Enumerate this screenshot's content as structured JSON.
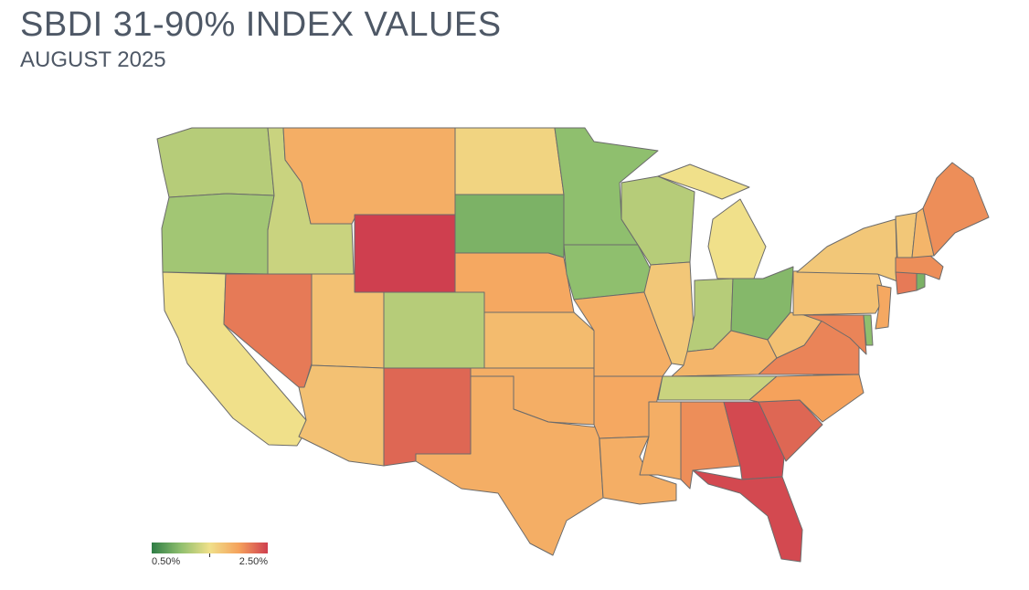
{
  "header": {
    "title": "SBDI 31-90% INDEX VALUES",
    "subtitle": "AUGUST 2025"
  },
  "legend": {
    "min_label": "0.50%",
    "max_label": "2.50%",
    "min_value": 0.5,
    "max_value": 2.5,
    "colors": [
      "#2e7d45",
      "#8fbf6e",
      "#f0e08a",
      "#f5a25c",
      "#cf3f4f"
    ]
  },
  "colors": {
    "border": "#6b6b6b",
    "title_text": "#4e5866"
  },
  "states": {
    "WA": {
      "value": 1.2
    },
    "OR": {
      "value": 1.1
    },
    "CA": {
      "value": 1.5
    },
    "ID": {
      "value": 1.3
    },
    "NV": {
      "value": 2.2
    },
    "MT": {
      "value": 1.9
    },
    "WY": {
      "value": 2.5
    },
    "UT": {
      "value": 1.75
    },
    "AZ": {
      "value": 1.75
    },
    "CO": {
      "value": 1.2
    },
    "NM": {
      "value": 2.3
    },
    "ND": {
      "value": 1.6
    },
    "SD": {
      "value": 0.9
    },
    "NE": {
      "value": 1.95
    },
    "KS": {
      "value": 1.8
    },
    "OK": {
      "value": 1.9
    },
    "TX": {
      "value": 1.9
    },
    "MN": {
      "value": 1.0
    },
    "IA": {
      "value": 1.0
    },
    "MO": {
      "value": 1.9
    },
    "AR": {
      "value": 1.95
    },
    "LA": {
      "value": 1.9
    },
    "WI": {
      "value": 1.2
    },
    "IL": {
      "value": 1.7
    },
    "MI": {
      "value": 1.5
    },
    "IN": {
      "value": 1.2
    },
    "OH": {
      "value": 0.95
    },
    "KY": {
      "value": 1.85
    },
    "TN": {
      "value": 1.3
    },
    "MS": {
      "value": 1.9
    },
    "AL": {
      "value": 2.1
    },
    "GA": {
      "value": 2.45
    },
    "FL": {
      "value": 2.45
    },
    "SC": {
      "value": 2.3
    },
    "NC": {
      "value": 2.0
    },
    "VA": {
      "value": 2.15
    },
    "WV": {
      "value": 1.75
    },
    "PA": {
      "value": 1.75
    },
    "NY": {
      "value": 1.7
    },
    "MD": {
      "value": 2.15
    },
    "DE": {
      "value": 1.0
    },
    "NJ": {
      "value": 1.95
    },
    "CT": {
      "value": 2.2
    },
    "RI": {
      "value": 0.9
    },
    "MA": {
      "value": 2.1
    },
    "VT": {
      "value": 1.7
    },
    "NH": {
      "value": 1.85
    },
    "ME": {
      "value": 2.1
    }
  }
}
